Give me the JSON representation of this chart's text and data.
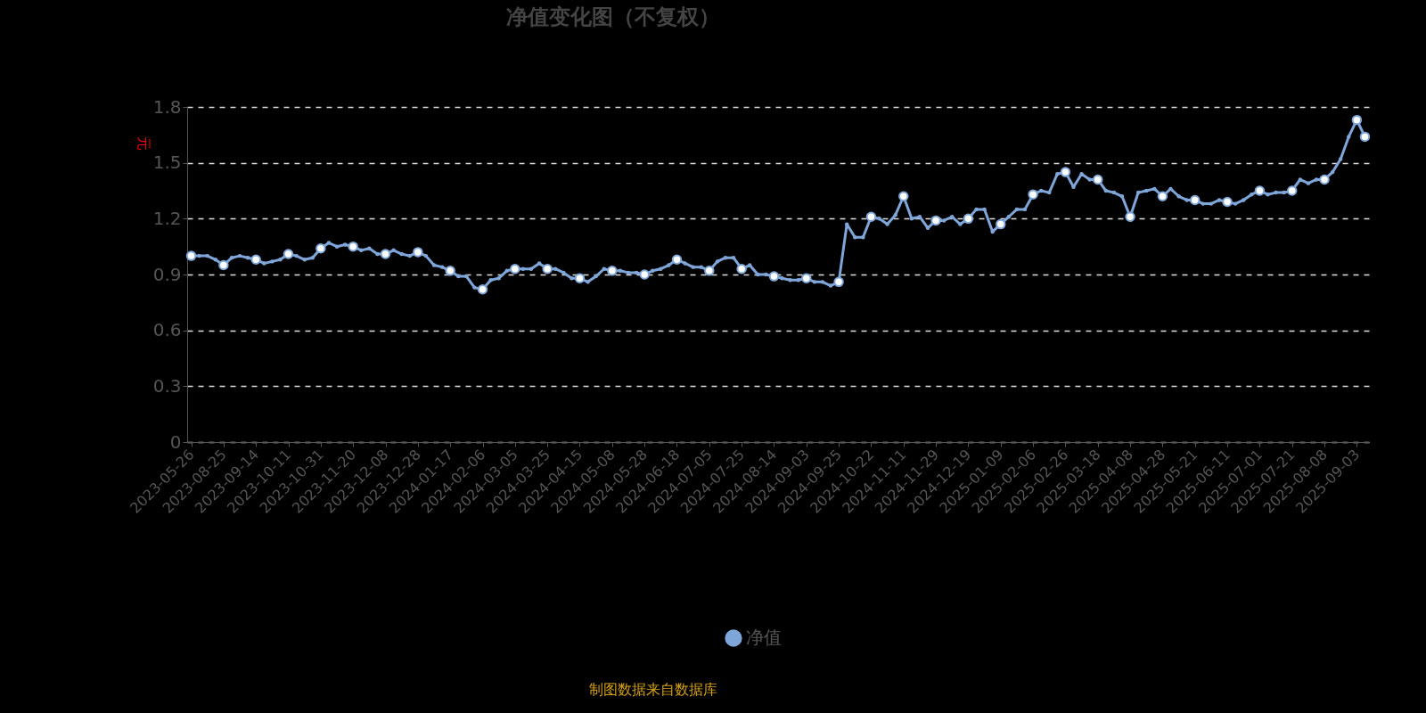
{
  "chart_data": {
    "type": "line",
    "title": "净值变化图（不复权）",
    "ylabel": "元",
    "annotations": [
      "制图数据来自数据库"
    ],
    "categories": [
      "2023-05-26",
      null,
      null,
      null,
      "2023-08-25",
      null,
      null,
      null,
      "2023-09-14",
      null,
      null,
      null,
      "2023-10-11",
      null,
      null,
      null,
      "2023-10-31",
      null,
      null,
      null,
      "2023-11-20",
      null,
      null,
      null,
      "2023-12-08",
      null,
      null,
      null,
      "2023-12-28",
      null,
      null,
      null,
      "2024-01-17",
      null,
      null,
      null,
      "2024-02-06",
      null,
      null,
      null,
      "2024-03-05",
      null,
      null,
      null,
      "2024-03-25",
      null,
      null,
      null,
      "2024-04-15",
      null,
      null,
      null,
      "2024-05-08",
      null,
      null,
      null,
      "2024-05-28",
      null,
      null,
      null,
      "2024-06-18",
      null,
      null,
      null,
      "2024-07-05",
      null,
      null,
      null,
      "2024-07-25",
      null,
      null,
      null,
      "2024-08-14",
      null,
      null,
      null,
      "2024-09-03",
      null,
      null,
      null,
      "2024-09-25",
      null,
      null,
      null,
      "2024-10-22",
      null,
      null,
      null,
      "2024-11-11",
      null,
      null,
      null,
      "2024-11-29",
      null,
      null,
      null,
      "2024-12-19",
      null,
      null,
      null,
      "2025-01-09",
      null,
      null,
      null,
      "2025-02-06",
      null,
      null,
      null,
      "2025-02-26",
      null,
      null,
      null,
      "2025-03-18",
      null,
      null,
      null,
      "2025-04-08",
      null,
      null,
      null,
      "2025-04-28",
      null,
      null,
      null,
      "2025-05-21",
      null,
      null,
      null,
      "2025-06-11",
      null,
      null,
      null,
      "2025-07-01",
      null,
      null,
      null,
      "2025-07-21",
      null,
      null,
      null,
      "2025-08-08",
      null,
      null,
      null,
      "2025-09-03",
      null
    ],
    "series": [
      {
        "name": "净值",
        "color": "#7fa6d9",
        "values": [
          1.0,
          1.0,
          1.0,
          0.98,
          0.95,
          0.99,
          1.0,
          0.99,
          0.98,
          0.96,
          0.97,
          0.98,
          1.01,
          1.0,
          0.98,
          0.99,
          1.04,
          1.07,
          1.05,
          1.06,
          1.05,
          1.03,
          1.04,
          1.01,
          1.01,
          1.03,
          1.01,
          1.0,
          1.02,
          1.0,
          0.95,
          0.94,
          0.92,
          0.89,
          0.89,
          0.83,
          0.82,
          0.87,
          0.88,
          0.92,
          0.93,
          0.93,
          0.93,
          0.96,
          0.93,
          0.93,
          0.91,
          0.88,
          0.88,
          0.86,
          0.89,
          0.93,
          0.92,
          0.92,
          0.91,
          0.91,
          0.9,
          0.92,
          0.93,
          0.95,
          0.98,
          0.96,
          0.94,
          0.94,
          0.92,
          0.97,
          0.99,
          0.99,
          0.93,
          0.95,
          0.9,
          0.9,
          0.89,
          0.88,
          0.87,
          0.87,
          0.88,
          0.86,
          0.86,
          0.84,
          0.86,
          1.17,
          1.1,
          1.1,
          1.21,
          1.2,
          1.17,
          1.22,
          1.32,
          1.2,
          1.21,
          1.15,
          1.19,
          1.19,
          1.21,
          1.17,
          1.2,
          1.25,
          1.25,
          1.13,
          1.17,
          1.21,
          1.25,
          1.25,
          1.33,
          1.35,
          1.34,
          1.44,
          1.45,
          1.37,
          1.44,
          1.41,
          1.41,
          1.35,
          1.34,
          1.32,
          1.21,
          1.34,
          1.35,
          1.36,
          1.32,
          1.36,
          1.32,
          1.3,
          1.3,
          1.28,
          1.28,
          1.3,
          1.29,
          1.28,
          1.3,
          1.33,
          1.35,
          1.33,
          1.34,
          1.34,
          1.35,
          1.41,
          1.39,
          1.41,
          1.41,
          1.45,
          1.52,
          1.64,
          1.73,
          1.64
        ]
      }
    ],
    "ylim": [
      0,
      1.8
    ],
    "yticks": [
      {
        "value": 0,
        "label": "0"
      },
      0.3,
      0.6,
      0.9,
      1.2,
      1.5,
      1.8
    ],
    "grid": "y",
    "legend": "bottom",
    "marker": "circle",
    "line_style": "solid"
  }
}
